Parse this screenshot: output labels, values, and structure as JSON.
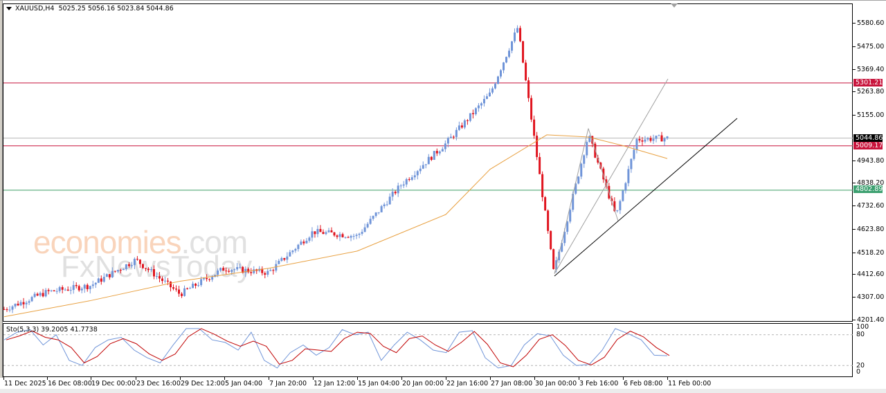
{
  "header": {
    "symbol": "XAUUSD,H4",
    "ohlc": "5025.25 5056.16 5023.84 5044.86",
    "open": 5025.25,
    "high": 5056.16,
    "low": 5023.84,
    "close": 5044.86
  },
  "indicator": {
    "label": "Sto(5,3,3) 39.2005 41.7738",
    "main_value": 39.2005,
    "signal_value": 41.7738,
    "levels": [
      "100",
      "80",
      "20",
      "0"
    ]
  },
  "price_axis": {
    "labels": [
      "5580.60",
      "5475.00",
      "5369.40",
      "5263.80",
      "5155.00",
      "4943.80",
      "4838.20",
      "4732.60",
      "4623.80",
      "4518.20",
      "4412.60",
      "4307.00",
      "4201.40"
    ]
  },
  "tags": {
    "current_price": "5044.86",
    "resistance_upper": "5301.21",
    "resistance_mid": "5009.17",
    "support": "4802.89"
  },
  "time_axis": {
    "labels": [
      "11 Dec 2025",
      "16 Dec 08:00",
      "19 Dec 00:00",
      "23 Dec 16:00",
      "29 Dec 12:00",
      "5 Jan 04:00",
      "7 Jan 20:00",
      "12 Jan 12:00",
      "15 Jan 04:00",
      "20 Jan 00:00",
      "22 Jan 16:00",
      "27 Jan 08:00",
      "30 Jan 00:00",
      "3 Feb 16:00",
      "6 Feb 08:00",
      "11 Feb 00:00"
    ]
  },
  "watermark": {
    "line1_brand": "economies",
    "line1_domain": ".com",
    "line2": "FxNewsToday"
  },
  "colors": {
    "bull": "#6f94d8",
    "bear": "#e0141e",
    "ma": "#e8a040",
    "resistance": "#c8143c",
    "support": "#3c9c64",
    "current": "#b4b4b4",
    "trendline": "#000000",
    "fan": "#a0a0a0",
    "sto_main": "#6f94d8",
    "sto_signal": "#c00000"
  },
  "chart_data": {
    "type": "candlestick",
    "title": "XAUUSD,H4",
    "xlabel": "",
    "ylabel": "",
    "ylim": [
      4201.4,
      5580.6
    ],
    "x_ticks": [
      "11 Dec 2025",
      "16 Dec 08:00",
      "19 Dec 00:00",
      "23 Dec 16:00",
      "29 Dec 12:00",
      "5 Jan 04:00",
      "7 Jan 20:00",
      "12 Jan 12:00",
      "15 Jan 04:00",
      "20 Jan 00:00",
      "22 Jan 16:00",
      "27 Jan 08:00",
      "30 Jan 00:00",
      "3 Feb 16:00",
      "6 Feb 08:00",
      "11 Feb 00:00"
    ],
    "y_ticks": [
      5580.6,
      5475.0,
      5369.4,
      5263.8,
      5155.0,
      4943.8,
      4838.2,
      4732.6,
      4623.8,
      4518.2,
      4412.6,
      4307.0,
      4201.4
    ],
    "horizontal_lines": [
      {
        "name": "resistance",
        "value": 5301.21
      },
      {
        "name": "current",
        "value": 5044.86
      },
      {
        "name": "resistance",
        "value": 5009.17
      },
      {
        "name": "support",
        "value": 4802.89
      }
    ],
    "close_path_approx": {
      "x": [
        "11 Dec",
        "16 Dec",
        "19 Dec",
        "23 Dec",
        "29 Dec",
        "5 Jan",
        "7 Jan",
        "12 Jan",
        "15 Jan",
        "20 Jan",
        "22 Jan",
        "27 Jan",
        "28 Jan",
        "30 Jan",
        "2 Feb",
        "3 Feb",
        "5 Feb",
        "6 Feb",
        "10 Feb"
      ],
      "values": [
        4250,
        4330,
        4360,
        4480,
        4320,
        4440,
        4420,
        4610,
        4590,
        4830,
        5020,
        5250,
        5560,
        5040,
        4420,
        5060,
        4680,
        5040,
        5045
      ]
    },
    "moving_average_approx": {
      "x": [
        "11 Dec",
        "19 Dec",
        "29 Dec",
        "7 Jan",
        "15 Jan",
        "22 Jan",
        "27 Jan",
        "30 Jan",
        "3 Feb",
        "6 Feb",
        "10 Feb"
      ],
      "values": [
        4215,
        4290,
        4380,
        4440,
        4520,
        4690,
        4900,
        5060,
        5050,
        5010,
        4950
      ]
    },
    "stochastic": {
      "params": "5,3,3",
      "main": 39.2005,
      "signal": 41.7738,
      "levels": [
        80,
        20
      ],
      "range": [
        0,
        100
      ]
    },
    "trendlines": [
      {
        "from": [
          "30 Jan 00:00",
          4415
        ],
        "to": [
          "11 Feb",
          5140
        ],
        "color": "black"
      }
    ],
    "grid": false,
    "legend": "none"
  }
}
